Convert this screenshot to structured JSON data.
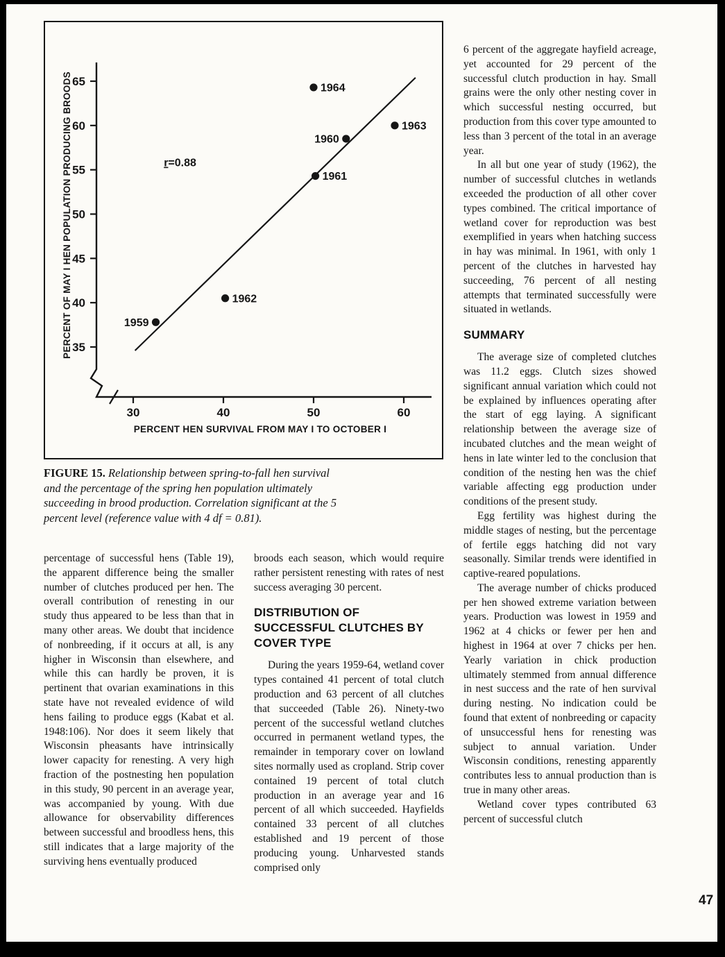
{
  "page": {
    "number": "47"
  },
  "figure": {
    "caption_label": "FIGURE 15.",
    "caption_text": " Relationship between spring-to-fall hen survival and the percentage of the spring hen population ultimately succeeding in brood production. Correlation significant at the 5 percent level (reference value with 4 df = 0.81)."
  },
  "chart_data": {
    "type": "scatter",
    "title": "",
    "xlabel": "PERCENT HEN SURVIVAL FROM MAY I TO OCTOBER I",
    "ylabel": "PERCENT OF MAY I HEN POPULATION PRODUCING BROODS",
    "xlim": [
      26,
      63
    ],
    "ylim": [
      31,
      67.5
    ],
    "x_ticks": [
      30,
      40,
      50,
      60
    ],
    "y_ticks": [
      35,
      40,
      45,
      50,
      55,
      60,
      65
    ],
    "grid": false,
    "annotation": {
      "text": "r=0.88",
      "x": 33.4,
      "y": 55.4
    },
    "points": [
      {
        "label": "1959",
        "x": 32.5,
        "y": 37.8,
        "label_side": "left"
      },
      {
        "label": "1962",
        "x": 40.2,
        "y": 40.5,
        "label_side": "right"
      },
      {
        "label": "1961",
        "x": 50.2,
        "y": 54.3,
        "label_side": "right"
      },
      {
        "label": "1960",
        "x": 53.6,
        "y": 58.5,
        "label_side": "left"
      },
      {
        "label": "1963",
        "x": 59.0,
        "y": 60.0,
        "label_side": "right"
      },
      {
        "label": "1964",
        "x": 50.0,
        "y": 64.3,
        "label_side": "right"
      }
    ],
    "regression_line": {
      "x1": 30.2,
      "y1": 34.6,
      "x2": 61.3,
      "y2": 65.4
    }
  },
  "columns": {
    "left": [
      {
        "type": "p",
        "text": "percentage of successful hens (Table 19), the apparent difference being the smaller number of clutches produced per hen. The overall contribution of renesting in our study thus appeared to be less than that in many other areas. We doubt that incidence of nonbreeding, if it occurs at all, is any higher in Wisconsin than elsewhere, and while this can hardly be proven, it is pertinent that ovarian examinations in this state have not revealed evidence of wild hens failing to produce eggs (Kabat et al. 1948:106). Nor does it seem likely that Wisconsin pheasants have intrinsically lower capacity for renesting. A very high fraction of the postnesting hen population in this study, 90 percent in an average year, was accompanied by young. With due allowance for observability differences between successful and broodless hens, this still indicates that a large majority of the surviving hens eventually produced"
      }
    ],
    "middle": [
      {
        "type": "p",
        "text": "broods each season, which would require rather persistent renesting with rates of nest success averaging 30 percent."
      },
      {
        "type": "h",
        "text": "DISTRIBUTION OF SUCCESSFUL CLUTCHES BY COVER TYPE"
      },
      {
        "type": "p",
        "text": "During the years 1959-64, wetland cover types contained 41 percent of total clutch production and 63 percent of all clutches that succeeded (Table 26). Ninety-two percent of the successful wetland clutches occurred in permanent wetland types, the remainder in temporary cover on lowland sites normally used as cropland. Strip cover contained 19 percent of total clutch production in an average year and 16 percent of all which succeeded. Hayfields contained 33 percent of all clutches established and 19 percent of those producing young. Unharvested stands comprised only"
      }
    ],
    "right": [
      {
        "type": "p",
        "text": "6 percent of the aggregate hayfield acreage, yet accounted for 29 percent of the successful clutch production in hay. Small grains were the only other nesting cover in which successful nesting occurred, but production from this cover type amounted to less than 3 percent of the total in an average year."
      },
      {
        "type": "p",
        "text": "In all but one year of study (1962), the number of successful clutches in wetlands exceeded the production of all other cover types combined. The critical importance of wetland cover for reproduction was best exemplified in years when hatching success in hay was minimal. In 1961, with only 1 percent of the clutches in harvested hay succeeding, 76 percent of all nesting attempts that terminated successfully were situated in wetlands."
      },
      {
        "type": "h",
        "text": "SUMMARY"
      },
      {
        "type": "p",
        "text": "The average size of completed clutches was 11.2 eggs. Clutch sizes showed significant annual variation which could not be explained by influences operating after the start of egg laying. A significant relationship between the average size of incubated clutches and the mean weight of hens in late winter led to the conclusion that condition of the nesting hen was the chief variable affecting egg production under conditions of the present study."
      },
      {
        "type": "p",
        "text": "Egg fertility was highest during the middle stages of nesting, but the percentage of fertile eggs hatching did not vary seasonally. Similar trends were identified in captive-reared populations."
      },
      {
        "type": "p",
        "text": "The average number of chicks produced per hen showed extreme variation between years. Production was lowest in 1959 and 1962 at 4 chicks or fewer per hen and highest in 1964 at over 7 chicks per hen. Yearly variation in chick production ultimately stemmed from annual difference in nest success and the rate of hen survival during nesting. No indication could be found that extent of nonbreeding or capacity of unsuccessful hens for renesting was subject to annual variation. Under Wisconsin conditions, renesting apparently contributes less to annual production than is true in many other areas."
      },
      {
        "type": "p",
        "text": "Wetland cover types contributed 63 percent of successful clutch"
      }
    ]
  }
}
